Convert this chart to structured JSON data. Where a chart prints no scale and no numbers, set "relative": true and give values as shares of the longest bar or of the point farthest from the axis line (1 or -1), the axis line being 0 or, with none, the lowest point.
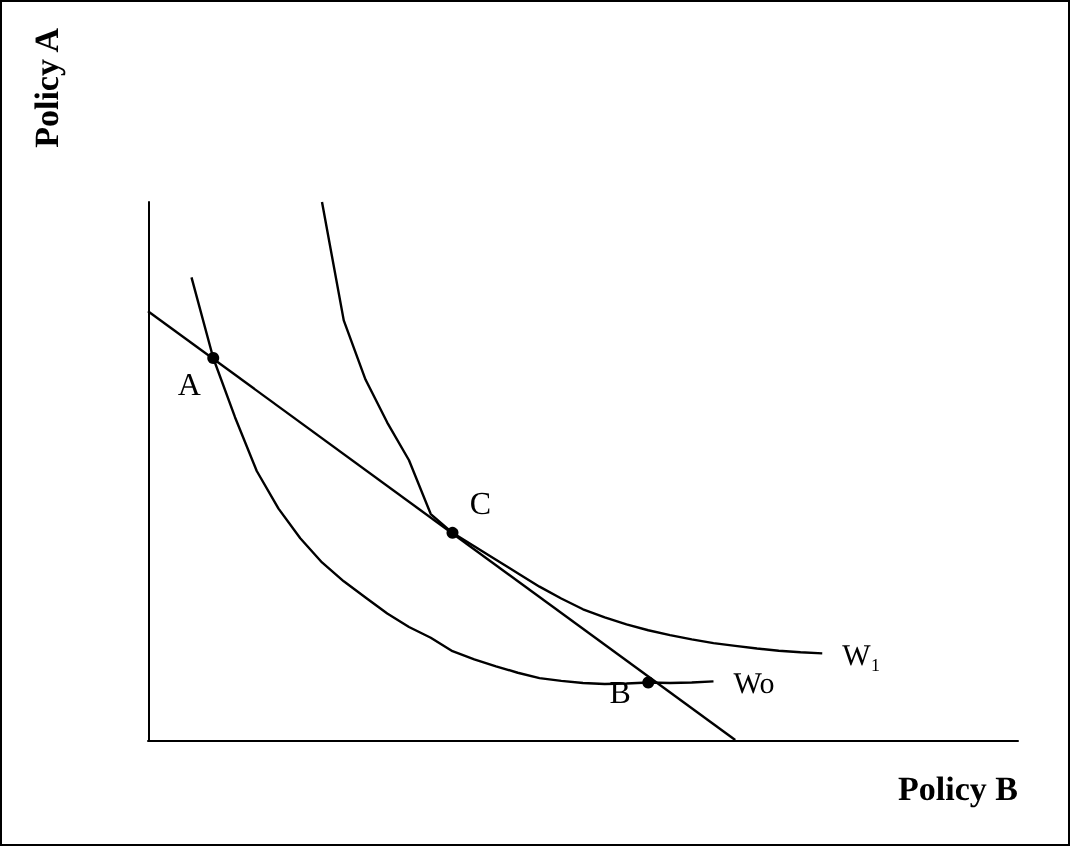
{
  "chart_data": {
    "type": "line",
    "relative": true,
    "xlabel": "Policy B",
    "ylabel": "Policy A",
    "categories": [
      null,
      null,
      null,
      null,
      null,
      null,
      null,
      null,
      null,
      null,
      null,
      null,
      null,
      null,
      null,
      null,
      null,
      null,
      null,
      null,
      null,
      null,
      null,
      null,
      null,
      null,
      null,
      null,
      null,
      null,
      null,
      null,
      null,
      null,
      null,
      null,
      null,
      null,
      null,
      null,
      null
    ],
    "series": [
      {
        "name": "Wo",
        "color": "#000000",
        "values": [
          null,
          null,
          0.86,
          0.71,
          0.6,
          0.5,
          0.43,
          0.375,
          0.33,
          0.295,
          0.265,
          0.235,
          0.21,
          0.19,
          0.165,
          0.15,
          0.137,
          0.125,
          0.115,
          0.11,
          0.106,
          0.104,
          0.105,
          0.107,
          0.106,
          0.107,
          0.109,
          null,
          null,
          null,
          null,
          null,
          null,
          null,
          null,
          null,
          null,
          null,
          null,
          null,
          null
        ]
      },
      {
        "name": "W₁",
        "color": "#000000",
        "values": [
          null,
          null,
          null,
          null,
          null,
          null,
          null,
          null,
          1.0,
          0.78,
          0.67,
          0.59,
          0.52,
          0.42,
          0.385,
          0.36,
          0.335,
          0.31,
          0.285,
          0.263,
          0.243,
          0.228,
          0.215,
          0.204,
          0.195,
          0.187,
          0.18,
          0.175,
          0.17,
          0.166,
          0.163,
          0.161,
          null,
          null,
          null,
          null,
          null,
          null,
          null,
          null,
          null
        ]
      },
      {
        "color": "#000000",
        "values": [
          0.797,
          null,
          null,
          null,
          null,
          null,
          null,
          null,
          null,
          null,
          null,
          null,
          null,
          null,
          null,
          null,
          null,
          null,
          null,
          null,
          null,
          null,
          null,
          null,
          null,
          null,
          null,
          0,
          null,
          null,
          null,
          null,
          null,
          null,
          null,
          null,
          null,
          null,
          null,
          null,
          null
        ]
      }
    ],
    "annotations": [
      "A",
      "C",
      "B"
    ]
  }
}
